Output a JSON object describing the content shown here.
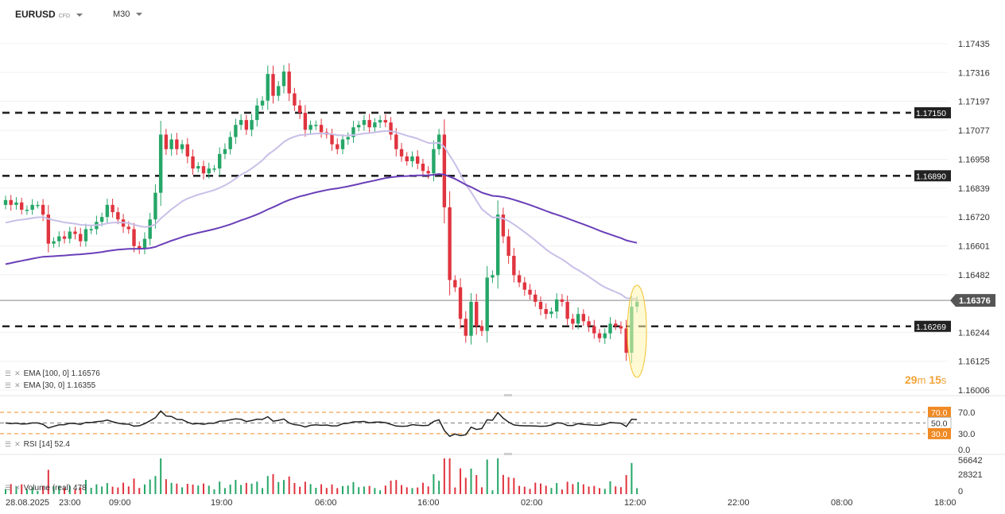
{
  "header": {
    "symbol": "EURUSD",
    "symbol_suffix": "CFD",
    "timeframe": "M30"
  },
  "colors": {
    "up": "#26a668",
    "down": "#e0343f",
    "ema100": "#6a3fb8",
    "ema30": "#c9bfe8",
    "orange": "#f08a24",
    "price_tag": "#555555",
    "level_tag": "#222222"
  },
  "chart_data": {
    "type": "candlestick",
    "price_axis_labels": [
      "1.17435",
      "1.17316",
      "1.17197",
      "1.17077",
      "1.16958",
      "1.16839",
      "1.16720",
      "1.16601",
      "1.16482",
      "1.16376",
      "1.16244",
      "1.16125",
      "1.16006"
    ],
    "current_price": "1.16376",
    "levels": [
      "1.17150",
      "1.16890",
      "1.16269"
    ],
    "x_labels": [
      "28.08.2025",
      "23:00",
      "09:00",
      "19:00",
      "06:00",
      "16:00",
      "02:00",
      "12:00",
      "22:00",
      "08:00",
      "18:00"
    ],
    "candle_seed": [
      1.1679,
      1.1677,
      1.1678,
      1.1675,
      1.1675,
      1.1677,
      1.1677,
      1.1673,
      1.1661,
      1.1662,
      1.1664,
      1.1663,
      1.1666,
      1.1665,
      1.1662,
      1.1667,
      1.1667,
      1.167,
      1.1672,
      1.1677,
      1.1674,
      1.1671,
      1.1668,
      1.1667,
      1.166,
      1.1659,
      1.1663,
      1.1671,
      1.1682,
      1.1706,
      1.17,
      1.1704,
      1.17,
      1.1702,
      1.1697,
      1.1692,
      1.1693,
      1.169,
      1.1692,
      1.1692,
      1.1698,
      1.17,
      1.1705,
      1.171,
      1.1712,
      1.1708,
      1.1712,
      1.1718,
      1.172,
      1.1731,
      1.1722,
      1.1726,
      1.1732,
      1.1723,
      1.1718,
      1.1715,
      1.1708,
      1.171,
      1.171,
      1.1707,
      1.1706,
      1.1702,
      1.17,
      1.1704,
      1.1705,
      1.1709,
      1.171,
      1.1712,
      1.1709,
      1.1711,
      1.1712,
      1.1711,
      1.1706,
      1.17,
      1.1697,
      1.1695,
      1.1697,
      1.1694,
      1.1691,
      1.169,
      1.17,
      1.1706,
      1.1676,
      1.1646,
      1.1643,
      1.163,
      1.1623,
      1.1637,
      1.1627,
      1.1625,
      1.1647,
      1.1648,
      1.1673,
      1.1664,
      1.1656,
      1.1648,
      1.1645,
      1.1642,
      1.164,
      1.1637,
      1.1634,
      1.1632,
      1.1633,
      1.1638,
      1.1637,
      1.163,
      1.1628,
      1.1632,
      1.1629,
      1.1627,
      1.1624,
      1.1622,
      1.1624,
      1.1628,
      1.1627,
      1.1626,
      1.1616,
      1.1635,
      1.1637
    ],
    "ema100_last": "1.16576",
    "ema30_last": "1.16355",
    "rsi": {
      "period": 14,
      "value": "52.4",
      "levels": [
        "70.0",
        "50.0",
        "30.0"
      ],
      "axis": [
        "70.0",
        "50.0",
        "30.0",
        "0.0"
      ]
    },
    "volume": {
      "label": "(real)",
      "value": "478",
      "axis": [
        "56642",
        "28321",
        "0"
      ]
    }
  },
  "legend": {
    "ema100": "EMA [100, 0] 1.16576",
    "ema30": "EMA [30, 0] 1.16355",
    "rsi": "RSI [14] 52.4",
    "volume": "Volume (real) 478"
  },
  "countdown": {
    "minutes": "29",
    "min_unit": "m",
    "seconds": "15",
    "sec_unit": "s"
  }
}
